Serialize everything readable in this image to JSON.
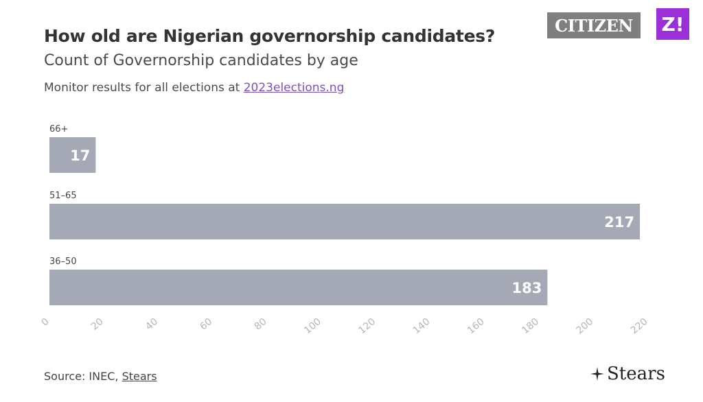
{
  "header": {
    "title": "How old are Nigerian governorship candidates?",
    "subtitle": "Count of Governorship candidates by age",
    "note_prefix": "Monitor results for all elections at ",
    "note_link": "2023elections.ng"
  },
  "logos": {
    "citizen": "CITIZEN",
    "z": "Z!",
    "stears": "Stears"
  },
  "footer": {
    "source_prefix": "Source: INEC, ",
    "source_link": "Stears"
  },
  "colors": {
    "bar": "#a4a9b5",
    "bar_label": "#ffffff",
    "axis_tick": "#b5b5b5",
    "grid": "#eeeeee",
    "link": "#7b4fc4",
    "z_brand": "#9b30d9",
    "citizen_brand": "#7f7f7f"
  },
  "chart_data": {
    "type": "bar",
    "orientation": "horizontal",
    "categories": [
      "66+",
      "51–65",
      "36–50"
    ],
    "values": [
      17,
      217,
      183
    ],
    "xlim": [
      0,
      220
    ],
    "xticks": [
      0,
      20,
      40,
      60,
      80,
      100,
      120,
      140,
      160,
      180,
      200,
      220
    ],
    "data_labels": [
      "17",
      "217",
      "183"
    ],
    "grid": false
  }
}
